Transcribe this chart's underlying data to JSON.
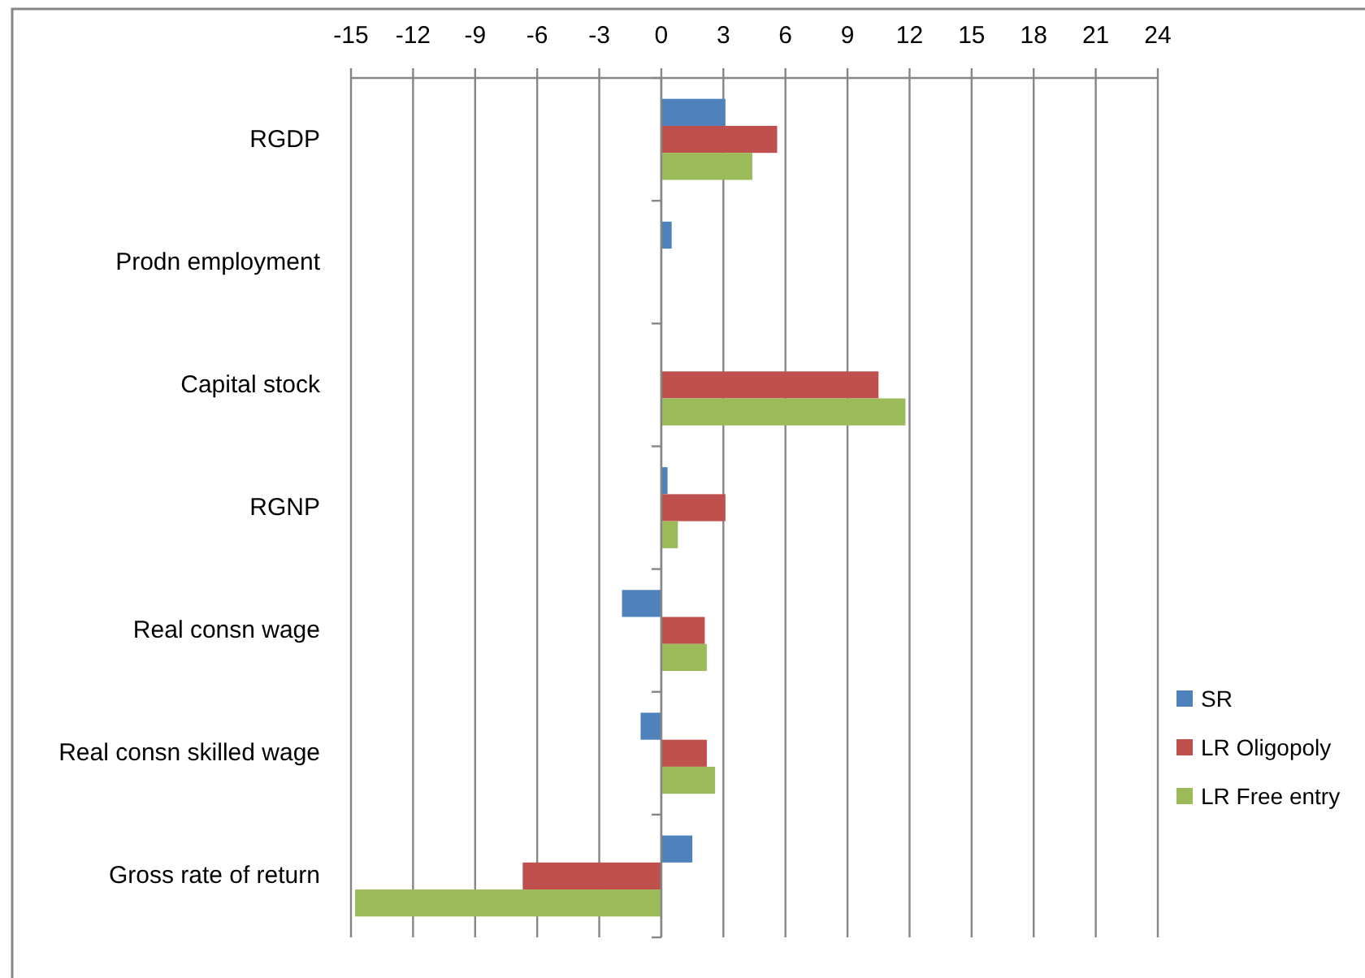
{
  "chart_data": {
    "type": "bar",
    "orientation": "horizontal",
    "categories": [
      "RGDP",
      "Prodn employment",
      "Capital stock",
      "RGNP",
      "Real consn wage",
      "Real consn skilled wage",
      "Gross rate of return"
    ],
    "series": [
      {
        "name": "SR",
        "color": "#4f81bd",
        "values": [
          3.1,
          0.5,
          null,
          0.3,
          -1.9,
          -1.0,
          1.5
        ]
      },
      {
        "name": "LR Oligopoly",
        "color": "#c0504d",
        "values": [
          5.6,
          null,
          10.5,
          3.1,
          2.1,
          2.2,
          -6.7
        ]
      },
      {
        "name": "LR Free entry",
        "color": "#9bbb59",
        "values": [
          4.4,
          null,
          11.8,
          0.8,
          2.2,
          2.6,
          -14.8
        ]
      }
    ],
    "xlim": [
      -15,
      24
    ],
    "xticks": [
      -15,
      -12,
      -9,
      -6,
      -3,
      0,
      3,
      6,
      9,
      12,
      15,
      18,
      21,
      24
    ],
    "grid": "x",
    "legend": "right"
  }
}
